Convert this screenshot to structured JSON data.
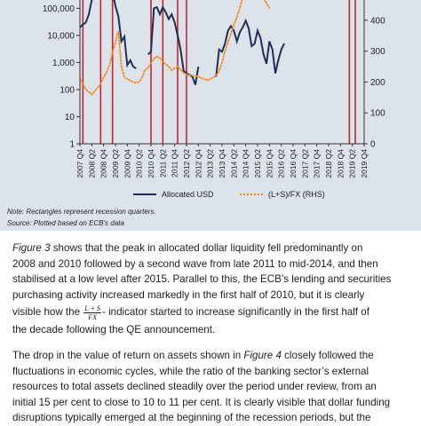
{
  "chart_data": {
    "type": "line",
    "title": "",
    "x_categories": [
      "2007 Q4",
      "2008 Q2",
      "2008 Q4",
      "2009 Q2",
      "2009 Q4",
      "2010 Q2",
      "2010 Q4",
      "2011 Q2",
      "2011 Q4",
      "2012 Q2",
      "2012 Q4",
      "2013 Q2",
      "2013 Q4",
      "2014 Q2",
      "2014 Q4",
      "2015 Q2",
      "2015 Q4",
      "2016 Q2",
      "2016 Q4",
      "2017 Q2",
      "2017 Q4",
      "2018 Q2",
      "2018 Q4",
      "2019 Q2",
      "2019 Q4"
    ],
    "x_tick_labels": [
      "2007 Q4",
      "2008 Q2",
      "2008 Q4",
      "2009 Q2",
      "2009 Q4",
      "2010 Q2",
      "2010 Q4",
      "2011 Q2",
      "2011 Q4",
      "2012 Q2",
      "2012 Q4",
      "2013 Q2",
      "2013 Q4",
      "2014 Q2",
      "2014 Q4",
      "2015 Q2",
      "2015 Q4",
      "2016 Q2",
      "2016 Q4",
      "2017 Q2",
      "2017 Q4",
      "2018 Q2",
      "2018 Q4",
      "2019 Q2",
      "2019 Q4"
    ],
    "x_start": 2007.875,
    "x_end": 2019.875,
    "y_left": {
      "scale": "log",
      "range": [
        1,
        500000
      ],
      "ticks": [
        1,
        10,
        100,
        1000,
        10000,
        100000
      ],
      "tick_labels": [
        "1",
        "10",
        "100",
        "1,000",
        "10,000",
        "100,000"
      ]
    },
    "y_right": {
      "scale": "linear",
      "range": [
        0,
        500
      ],
      "ticks": [
        0,
        100,
        200,
        300,
        400
      ],
      "tick_labels": [
        "0",
        "100",
        "200",
        "300",
        "400"
      ]
    },
    "recession_bars": [
      2008.0,
      2008.75,
      2009.25,
      2010.875,
      2011.375,
      2012.0,
      2012.375,
      2019.25,
      2019.5
    ],
    "series": [
      {
        "name": "Allocated USD",
        "axis": "left",
        "color": "#1f2f57",
        "points": [
          [
            2007.875,
            20000
          ],
          [
            2008.0,
            25000
          ],
          [
            2008.125,
            30000
          ],
          [
            2008.25,
            60000
          ],
          [
            2008.375,
            200000
          ],
          [
            2008.5,
            600000
          ],
          [
            2009.25,
            400000
          ],
          [
            2009.375,
            120000
          ],
          [
            2009.5,
            50000
          ],
          [
            2009.625,
            6000
          ],
          [
            2009.75,
            9000
          ],
          [
            2009.875,
            800
          ],
          [
            2010.0,
            1200
          ],
          [
            2010.125,
            700
          ],
          [
            2010.25,
            600
          ],
          [
            2010.75,
            2000
          ],
          [
            2010.875,
            2500
          ],
          [
            2011.0,
            100000
          ],
          [
            2011.125,
            110000
          ],
          [
            2011.25,
            60000
          ],
          [
            2011.375,
            110000
          ],
          [
            2011.5,
            70000
          ],
          [
            2011.625,
            40000
          ],
          [
            2011.75,
            60000
          ],
          [
            2011.875,
            30000
          ],
          [
            2012.0,
            10000
          ],
          [
            2012.125,
            3000
          ],
          [
            2012.25,
            500
          ],
          [
            2012.375,
            400
          ],
          [
            2012.5,
            350
          ],
          [
            2012.625,
            300
          ],
          [
            2012.75,
            150
          ],
          [
            2012.875,
            700
          ],
          [
            2013.625,
            300
          ],
          [
            2013.75,
            3000
          ],
          [
            2013.875,
            2500
          ],
          [
            2014.0,
            5000
          ],
          [
            2014.125,
            15000
          ],
          [
            2014.25,
            22000
          ],
          [
            2014.375,
            15000
          ],
          [
            2014.5,
            6000
          ],
          [
            2014.625,
            13000
          ],
          [
            2014.75,
            20000
          ],
          [
            2014.875,
            35000
          ],
          [
            2015.0,
            18000
          ],
          [
            2015.125,
            4000
          ],
          [
            2015.25,
            5000
          ],
          [
            2015.375,
            15000
          ],
          [
            2015.5,
            8000
          ],
          [
            2015.625,
            2000
          ],
          [
            2015.75,
            900
          ],
          [
            2015.875,
            6000
          ],
          [
            2016.0,
            3000
          ],
          [
            2016.125,
            400
          ],
          [
            2016.25,
            1200
          ],
          [
            2016.375,
            3000
          ],
          [
            2016.5,
            5000
          ]
        ]
      },
      {
        "name": "(L+S)/FX (RHS)",
        "axis": "right",
        "color": "#f28c1c",
        "points": [
          [
            2007.875,
            210
          ],
          [
            2008.0,
            195
          ],
          [
            2008.125,
            175
          ],
          [
            2008.25,
            168
          ],
          [
            2008.375,
            160
          ],
          [
            2008.5,
            170
          ],
          [
            2008.625,
            182
          ],
          [
            2008.75,
            195
          ],
          [
            2008.875,
            215
          ],
          [
            2009.0,
            232
          ],
          [
            2009.125,
            255
          ],
          [
            2009.25,
            295
          ],
          [
            2009.375,
            330
          ],
          [
            2009.5,
            365
          ],
          [
            2009.625,
            250
          ],
          [
            2009.75,
            215
          ],
          [
            2009.875,
            210
          ],
          [
            2010.0,
            205
          ],
          [
            2010.125,
            200
          ],
          [
            2010.25,
            198
          ],
          [
            2010.375,
            200
          ],
          [
            2010.5,
            215
          ],
          [
            2010.625,
            240
          ],
          [
            2010.75,
            245
          ],
          [
            2010.875,
            262
          ],
          [
            2011.0,
            275
          ],
          [
            2011.125,
            282
          ],
          [
            2011.25,
            278
          ],
          [
            2011.375,
            265
          ],
          [
            2011.5,
            258
          ],
          [
            2011.625,
            250
          ],
          [
            2011.75,
            238
          ],
          [
            2011.875,
            245
          ],
          [
            2012.0,
            250
          ],
          [
            2012.125,
            240
          ],
          [
            2012.25,
            230
          ],
          [
            2012.375,
            225
          ],
          [
            2012.5,
            222
          ],
          [
            2012.625,
            220
          ],
          [
            2012.75,
            220
          ],
          [
            2012.875,
            218
          ],
          [
            2013.0,
            212
          ],
          [
            2013.125,
            210
          ],
          [
            2013.25,
            205
          ],
          [
            2013.375,
            210
          ],
          [
            2013.5,
            215
          ],
          [
            2013.625,
            220
          ],
          [
            2013.75,
            235
          ],
          [
            2013.875,
            262
          ],
          [
            2014.0,
            300
          ],
          [
            2014.125,
            330
          ],
          [
            2014.25,
            355
          ],
          [
            2014.375,
            385
          ],
          [
            2014.5,
            410
          ],
          [
            2014.625,
            440
          ],
          [
            2014.75,
            475
          ],
          [
            2014.875,
            505
          ],
          [
            2015.375,
            505
          ],
          [
            2015.5,
            480
          ],
          [
            2015.625,
            470
          ],
          [
            2015.75,
            455
          ],
          [
            2015.875,
            440
          ]
        ]
      }
    ],
    "legend": {
      "placement": "bottom",
      "entries": [
        "Allocated USD",
        "(L+S)/FX (RHS)"
      ]
    },
    "grid": false
  },
  "figure": {
    "note": "Note: Rectangles represent recession quarters.",
    "source": "Source: Plotted based on ECB's data"
  },
  "body": {
    "p1": [
      "Figure 3 shows that the peak in allocated dollar liquidity fell predominantly on",
      "2008 and 2010 followed by a second wave from late 2011 to mid-2014, and then",
      "stabilised at a low level after 2015. Parallel to this, the ECB’s lending and securities",
      "purchasing activity increased markedly in the first half of 2010, but it is clearly"
    ],
    "p1_line5_before": "visible how the",
    "formula_numerator": "L + S",
    "formula_denominator": "FX",
    "p1_line5_after": "- indicator started to increase significantly in the first half of",
    "p1_line6": "the decade following the QE announcement.",
    "p2": [
      "The drop in the value of return on assets shown in Figure 4 closely followed the",
      "fluctuations in economic cycles, while the ratio of the banking sector’s external",
      "resources to total assets declined steadily over the period under review, from an",
      "initial 15 per cent to close to 10 to 11 per cent. It is clearly visible that dollar funding",
      "disruptions typically emerged at the beginning of the recession periods, but the"
    ]
  }
}
